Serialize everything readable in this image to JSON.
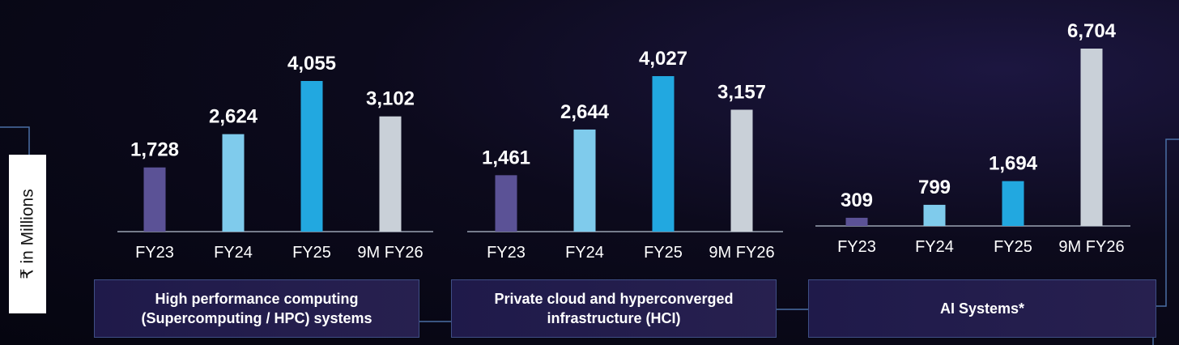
{
  "ylabel": "₹ in Millions",
  "colors": {
    "FY23": "#5b5296",
    "FY24": "#7fcbec",
    "FY25": "#22a8e0",
    "9M FY26": "#c9d0d8",
    "label_text": "#ffffff",
    "axis": "#9aa3b2",
    "connector": "#4a6fa5"
  },
  "chart_data": [
    {
      "type": "bar",
      "categories": [
        "FY23",
        "FY24",
        "FY25",
        "9M FY26"
      ],
      "values": [
        1728,
        2624,
        4055,
        3102
      ],
      "data_labels": [
        "1,728",
        "2,624",
        "4,055",
        "3,102"
      ],
      "segment_label": "High performance computing\n(Supercomputing / HPC) systems",
      "ylabel": "₹ in Millions"
    },
    {
      "type": "bar",
      "categories": [
        "FY23",
        "FY24",
        "FY25",
        "9M FY26"
      ],
      "values": [
        1461,
        2644,
        4027,
        3157
      ],
      "data_labels": [
        "1,461",
        "2,644",
        "4,027",
        "3,157"
      ],
      "segment_label": "Private cloud and hyperconverged\ninfrastructure (HCI)",
      "ylabel": "₹ in Millions"
    },
    {
      "type": "bar",
      "categories": [
        "FY23",
        "FY24",
        "FY25",
        "9M FY26"
      ],
      "values": [
        309,
        799,
        1694,
        6704
      ],
      "data_labels": [
        "309",
        "799",
        "1,694",
        "6,704"
      ],
      "segment_label": "AI Systems*",
      "ylabel": "₹ in Millions"
    }
  ]
}
